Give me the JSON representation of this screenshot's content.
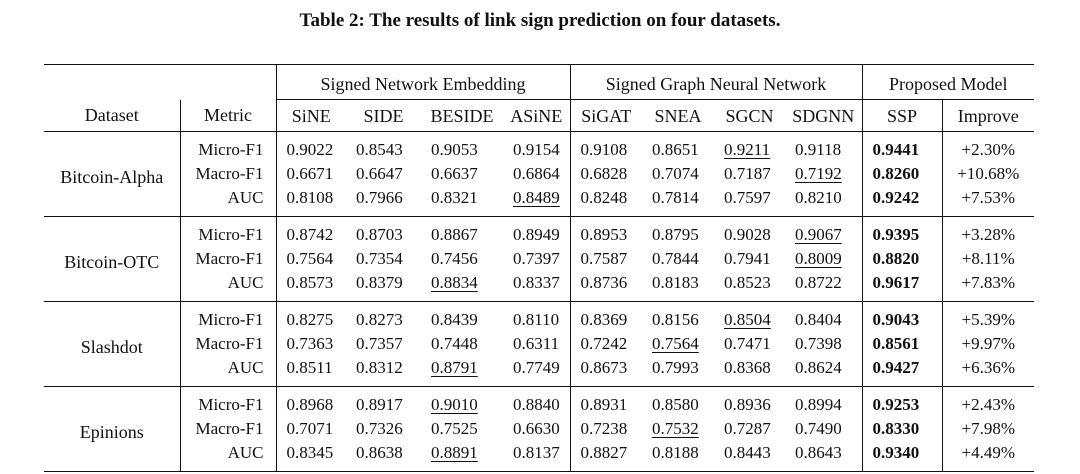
{
  "caption": "Table 2: The results of link sign prediction on four datasets.",
  "table": {
    "groups": {
      "embedding": "Signed Network Embedding",
      "gnn": "Signed Graph Neural Network",
      "proposed": "Proposed Model"
    },
    "headers": [
      "Dataset",
      "Metric",
      "SiNE",
      "SIDE",
      "BESIDE",
      "ASiNE",
      "SiGAT",
      "SNEA",
      "SGCN",
      "SDGNN",
      "SSP",
      "Improve"
    ],
    "datasets": [
      {
        "name": "Bitcoin-Alpha",
        "rows": [
          {
            "metric": "Micro-F1",
            "values": [
              "0.9022",
              "0.8543",
              "0.9053",
              "0.9154",
              "0.9108",
              "0.8651",
              "0.9211",
              "0.9118",
              "0.9441"
            ],
            "improve": "+2.30%",
            "underline": 6
          },
          {
            "metric": "Macro-F1",
            "values": [
              "0.6671",
              "0.6647",
              "0.6637",
              "0.6864",
              "0.6828",
              "0.7074",
              "0.7187",
              "0.7192",
              "0.8260"
            ],
            "improve": "+10.68%",
            "underline": 7
          },
          {
            "metric": "AUC",
            "values": [
              "0.8108",
              "0.7966",
              "0.8321",
              "0.8489",
              "0.8248",
              "0.7814",
              "0.7597",
              "0.8210",
              "0.9242"
            ],
            "improve": "+7.53%",
            "underline": 3
          }
        ]
      },
      {
        "name": "Bitcoin-OTC",
        "rows": [
          {
            "metric": "Micro-F1",
            "values": [
              "0.8742",
              "0.8703",
              "0.8867",
              "0.8949",
              "0.8953",
              "0.8795",
              "0.9028",
              "0.9067",
              "0.9395"
            ],
            "improve": "+3.28%",
            "underline": 7
          },
          {
            "metric": "Macro-F1",
            "values": [
              "0.7564",
              "0.7354",
              "0.7456",
              "0.7397",
              "0.7587",
              "0.7844",
              "0.7941",
              "0.8009",
              "0.8820"
            ],
            "improve": "+8.11%",
            "underline": 7
          },
          {
            "metric": "AUC",
            "values": [
              "0.8573",
              "0.8379",
              "0.8834",
              "0.8337",
              "0.8736",
              "0.8183",
              "0.8523",
              "0.8722",
              "0.9617"
            ],
            "improve": "+7.83%",
            "underline": 2
          }
        ]
      },
      {
        "name": "Slashdot",
        "rows": [
          {
            "metric": "Micro-F1",
            "values": [
              "0.8275",
              "0.8273",
              "0.8439",
              "0.8110",
              "0.8369",
              "0.8156",
              "0.8504",
              "0.8404",
              "0.9043"
            ],
            "improve": "+5.39%",
            "underline": 6
          },
          {
            "metric": "Macro-F1",
            "values": [
              "0.7363",
              "0.7357",
              "0.7448",
              "0.6311",
              "0.7242",
              "0.7564",
              "0.7471",
              "0.7398",
              "0.8561"
            ],
            "improve": "+9.97%",
            "underline": 5
          },
          {
            "metric": "AUC",
            "values": [
              "0.8511",
              "0.8312",
              "0.8791",
              "0.7749",
              "0.8673",
              "0.7993",
              "0.8368",
              "0.8624",
              "0.9427"
            ],
            "improve": "+6.36%",
            "underline": 2
          }
        ]
      },
      {
        "name": "Epinions",
        "rows": [
          {
            "metric": "Micro-F1",
            "values": [
              "0.8968",
              "0.8917",
              "0.9010",
              "0.8840",
              "0.8931",
              "0.8580",
              "0.8936",
              "0.8994",
              "0.9253"
            ],
            "improve": "+2.43%",
            "underline": 2
          },
          {
            "metric": "Macro-F1",
            "values": [
              "0.7071",
              "0.7326",
              "0.7525",
              "0.6630",
              "0.7238",
              "0.7532",
              "0.7287",
              "0.7490",
              "0.8330"
            ],
            "improve": "+7.98%",
            "underline": 5
          },
          {
            "metric": "AUC",
            "values": [
              "0.8345",
              "0.8638",
              "0.8891",
              "0.8137",
              "0.8827",
              "0.8188",
              "0.8443",
              "0.8643",
              "0.9340"
            ],
            "improve": "+4.49%",
            "underline": 2
          }
        ]
      }
    ]
  }
}
